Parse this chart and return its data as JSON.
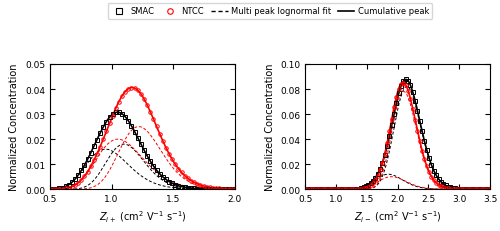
{
  "left_xlim": [
    0.5,
    2.0
  ],
  "right_xlim": [
    0.5,
    3.5
  ],
  "left_ylim": [
    0.0,
    0.05
  ],
  "right_ylim": [
    0.0,
    0.1
  ],
  "left_xlabel": "Z_{i+} (cm² V⁻¹ s⁻¹)",
  "right_xlabel": "Z_{i-} (cm² V⁻¹ s⁻¹)",
  "ylabel": "Normalized Concentration",
  "legend_labels": [
    "SMAC",
    "NTCC",
    "Multi peak lognormal fit",
    "Cumulative peak"
  ],
  "legend_colors": [
    "black",
    "red",
    "black",
    "black"
  ],
  "left_smac_peak1": {
    "mu": 0.95,
    "sigma": 0.18,
    "amp": 0.016
  },
  "left_smac_peak2": {
    "mu": 1.1,
    "sigma": 0.14,
    "amp": 0.018
  },
  "left_ntcc_peak1": {
    "mu": 1.05,
    "sigma": 0.18,
    "amp": 0.02
  },
  "left_ntcc_peak2": {
    "mu": 1.22,
    "sigma": 0.14,
    "amp": 0.025
  },
  "right_smac_peak1": {
    "mu": 1.85,
    "sigma": 0.12,
    "amp": 0.012
  },
  "right_smac_peak2": {
    "mu": 2.15,
    "sigma": 0.1,
    "amp": 0.082
  },
  "right_ntcc_peak1": {
    "mu": 1.9,
    "sigma": 0.12,
    "amp": 0.01
  },
  "right_ntcc_peak2": {
    "mu": 2.1,
    "sigma": 0.095,
    "amp": 0.078
  },
  "smac_color": "black",
  "ntcc_color": "red",
  "fit_color_black": "black",
  "fit_color_red": "red",
  "cumulative_color_black": "black",
  "cumulative_color_red": "red"
}
